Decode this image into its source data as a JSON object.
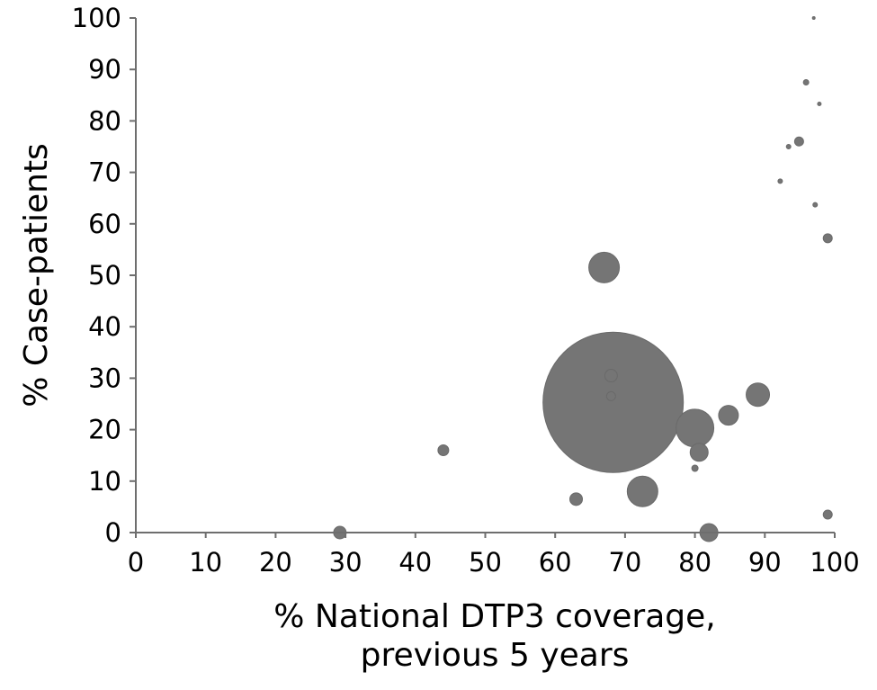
{
  "chart_data": {
    "type": "scatter",
    "title": "",
    "xlabel_lines": [
      "% National DTP3 coverage,",
      "previous 5 years"
    ],
    "ylabel": "% Case-patients",
    "xlim": [
      0,
      100
    ],
    "ylim": [
      0,
      100
    ],
    "x_ticks": [
      "0",
      "10",
      "20",
      "30",
      "40",
      "50",
      "60",
      "70",
      "80",
      "90",
      "100"
    ],
    "y_ticks": [
      "0",
      "10",
      "20",
      "30",
      "40",
      "50",
      "60",
      "70",
      "80",
      "90",
      "100"
    ],
    "grid": false,
    "legend": "none",
    "bubble_color": "#757575",
    "points": [
      {
        "x": 68.3,
        "y": 25.3,
        "size": 78
      },
      {
        "x": 67.0,
        "y": 51.5,
        "size": 17
      },
      {
        "x": 80.0,
        "y": 20.3,
        "size": 21
      },
      {
        "x": 72.5,
        "y": 8.0,
        "size": 17
      },
      {
        "x": 89.0,
        "y": 26.8,
        "size": 13
      },
      {
        "x": 84.8,
        "y": 22.8,
        "size": 11
      },
      {
        "x": 80.6,
        "y": 15.6,
        "size": 10
      },
      {
        "x": 82.0,
        "y": 0.0,
        "size": 10
      },
      {
        "x": 68.0,
        "y": 30.5,
        "size": 7
      },
      {
        "x": 63.0,
        "y": 6.5,
        "size": 7
      },
      {
        "x": 29.2,
        "y": 0.0,
        "size": 7
      },
      {
        "x": 44.0,
        "y": 16.0,
        "size": 6
      },
      {
        "x": 68.0,
        "y": 26.5,
        "size": 5
      },
      {
        "x": 94.9,
        "y": 76.0,
        "size": 5
      },
      {
        "x": 99.0,
        "y": 57.2,
        "size": 5
      },
      {
        "x": 99.0,
        "y": 3.5,
        "size": 5
      },
      {
        "x": 80.0,
        "y": 12.5,
        "size": 3.5
      },
      {
        "x": 95.9,
        "y": 87.5,
        "size": 3
      },
      {
        "x": 93.4,
        "y": 75.0,
        "size": 2.5
      },
      {
        "x": 92.2,
        "y": 68.3,
        "size": 2.5
      },
      {
        "x": 97.2,
        "y": 63.7,
        "size": 2.5
      },
      {
        "x": 97.8,
        "y": 83.3,
        "size": 2
      },
      {
        "x": 97.0,
        "y": 100.0,
        "size": 1.5
      }
    ]
  }
}
